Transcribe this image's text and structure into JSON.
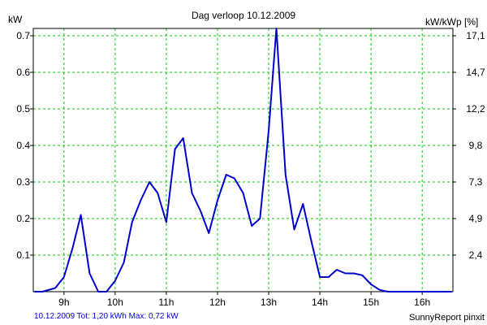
{
  "chart_data": {
    "type": "line",
    "title": "Dag  verloop 10.12.2009",
    "ylabel_left": "kW",
    "ylabel_right": "kW/kWp [%]",
    "footer_left": "10.12.2009 Tot: 1,20 kWh Max: 0,72 kW",
    "footer_right": "SunnyReport pinxit",
    "xlim": [
      8.4,
      16.6
    ],
    "ylim": [
      0,
      0.72
    ],
    "x_ticks": [
      9,
      10,
      11,
      12,
      13,
      14,
      15,
      16
    ],
    "x_tick_labels": [
      "9h",
      "10h",
      "11h",
      "12h",
      "13h",
      "14h",
      "15h",
      "16h"
    ],
    "y_ticks": [
      0.1,
      0.2,
      0.3,
      0.4,
      0.5,
      0.6,
      0.7
    ],
    "y_tick_labels": [
      "0.1",
      "0.2",
      "0.3",
      "0.4",
      "0.5",
      "0.6",
      "0.7"
    ],
    "y2_ticks": [
      0.1,
      0.2,
      0.3,
      0.4,
      0.5,
      0.6,
      0.7
    ],
    "y2_tick_labels": [
      "2,4",
      "4,9",
      "7,3",
      "9,8",
      "12,2",
      "14,7",
      "17,1"
    ],
    "grid": true,
    "line_color": "#0000cc",
    "grid_color": "#00cc00",
    "series": [
      {
        "x": [
          8.42,
          8.58,
          8.83,
          9.0,
          9.17,
          9.33,
          9.5,
          9.67,
          9.83,
          10.0,
          10.17,
          10.33,
          10.5,
          10.67,
          10.83,
          11.0,
          11.17,
          11.33,
          11.5,
          11.67,
          11.83,
          12.0,
          12.17,
          12.33,
          12.5,
          12.67,
          12.83,
          13.0,
          13.15,
          13.33,
          13.5,
          13.67,
          13.83,
          14.0,
          14.17,
          14.33,
          14.5,
          14.67,
          14.83,
          15.0,
          15.17,
          15.33,
          15.5,
          15.67,
          15.83,
          16.0,
          16.2,
          16.58
        ],
        "y": [
          0.0,
          0.0,
          0.01,
          0.04,
          0.12,
          0.21,
          0.05,
          0.0,
          0.0,
          0.03,
          0.08,
          0.19,
          0.25,
          0.3,
          0.27,
          0.19,
          0.39,
          0.42,
          0.27,
          0.22,
          0.16,
          0.25,
          0.32,
          0.31,
          0.27,
          0.18,
          0.2,
          0.44,
          0.72,
          0.32,
          0.17,
          0.24,
          0.14,
          0.04,
          0.04,
          0.06,
          0.05,
          0.05,
          0.045,
          0.02,
          0.005,
          0.0,
          0.0,
          0.0,
          0.0,
          0.0,
          0.0,
          0.0
        ]
      }
    ]
  }
}
